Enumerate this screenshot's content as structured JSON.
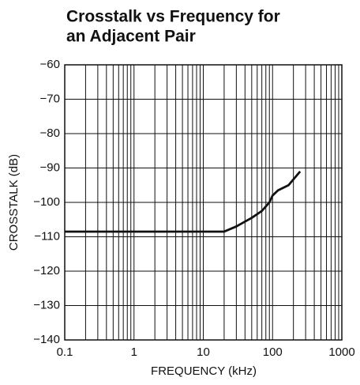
{
  "chart_data": {
    "type": "line",
    "title_lines": [
      "Crosstalk vs Frequency for",
      "an Adjacent Pair"
    ],
    "x_label": "FREQUENCY (kHz)",
    "y_label": "CROSSTALK (dB)",
    "xscale": "log",
    "grid": true,
    "minor_grid": true,
    "xlim": [
      0.1,
      1000
    ],
    "xticks": [
      0.1,
      1,
      10,
      100,
      1000
    ],
    "ylim": [
      -140,
      -60
    ],
    "yticks": [
      {
        "value": -60,
        "label": "−60"
      },
      {
        "value": -70,
        "label": "−70"
      },
      {
        "value": -80,
        "label": "−80"
      },
      {
        "value": -90,
        "label": "−90"
      },
      {
        "value": -100,
        "label": "−100"
      },
      {
        "value": -110,
        "label": "−110"
      },
      {
        "value": -120,
        "label": "−120"
      },
      {
        "value": -130,
        "label": "−130"
      },
      {
        "value": -140,
        "label": "−140"
      }
    ],
    "x": [
      0.1,
      20,
      30,
      50,
      70,
      90,
      100,
      120,
      170,
      250
    ],
    "series": [
      {
        "color": "#111111",
        "values": [
          -108.5,
          -108.5,
          -107,
          -104.5,
          -102.5,
          -100,
          -98,
          -96.5,
          -95,
          -91
        ]
      }
    ]
  }
}
